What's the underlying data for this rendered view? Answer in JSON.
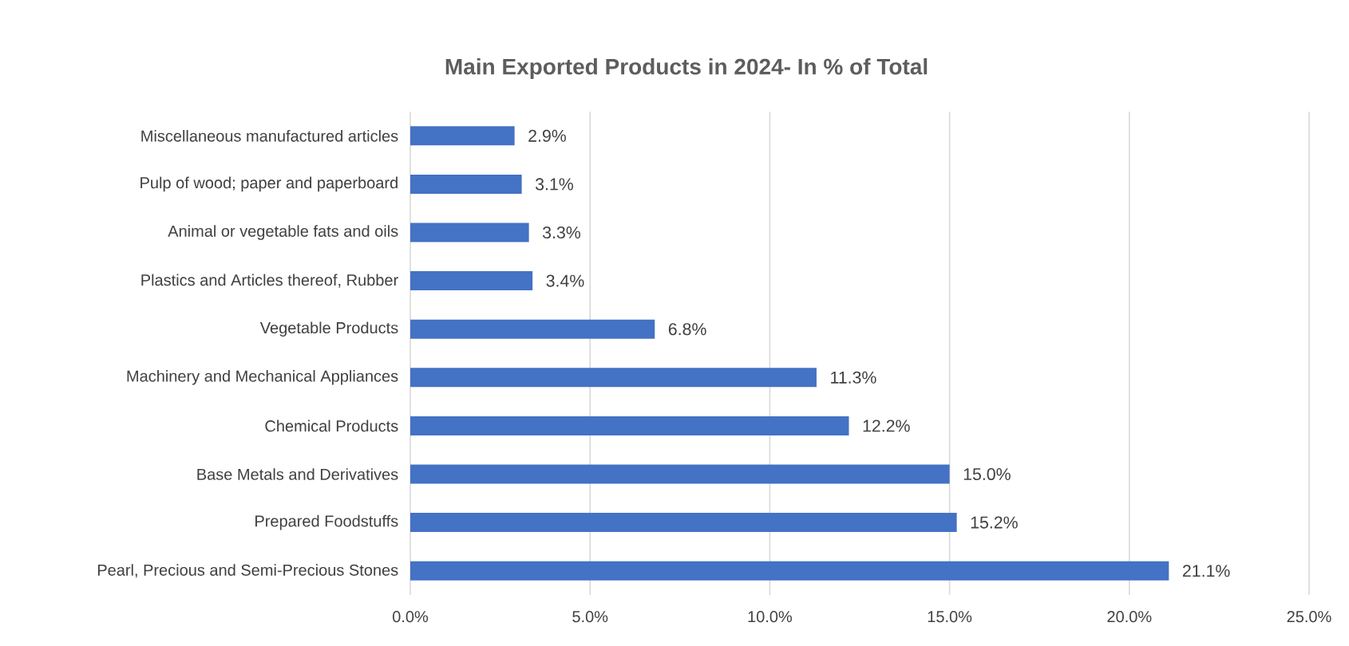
{
  "chart_data": {
    "type": "bar",
    "orientation": "horizontal",
    "title": "Main Exported Products in 2024- In % of Total",
    "categories": [
      "Miscellaneous manufactured articles",
      "Pulp of wood; paper and paperboard",
      "Animal or vegetable fats and oils",
      "Plastics and Articles thereof, Rubber",
      "Vegetable Products",
      "Machinery and Mechanical Appliances",
      "Chemical Products",
      "Base Metals and Derivatives",
      "Prepared Foodstuffs",
      "Pearl, Precious and Semi-Precious Stones"
    ],
    "values": [
      2.9,
      3.1,
      3.3,
      3.4,
      6.8,
      11.3,
      12.2,
      15.0,
      15.2,
      21.1
    ],
    "value_labels": [
      "2.9%",
      "3.1%",
      "3.3%",
      "3.4%",
      "6.8%",
      "11.3%",
      "12.2%",
      "15.0%",
      "15.2%",
      "21.1%"
    ],
    "color": "#4472c4",
    "xlim": [
      0,
      25
    ],
    "xticks": [
      {
        "value": 0,
        "label": "0.0%"
      },
      {
        "value": 5,
        "label": "5.0%"
      },
      {
        "value": 10,
        "label": "10.0%"
      },
      {
        "value": 15,
        "label": "15.0%"
      },
      {
        "value": 20,
        "label": "20.0%"
      },
      {
        "value": 25,
        "label": "25.0%"
      }
    ],
    "grid": "x"
  }
}
